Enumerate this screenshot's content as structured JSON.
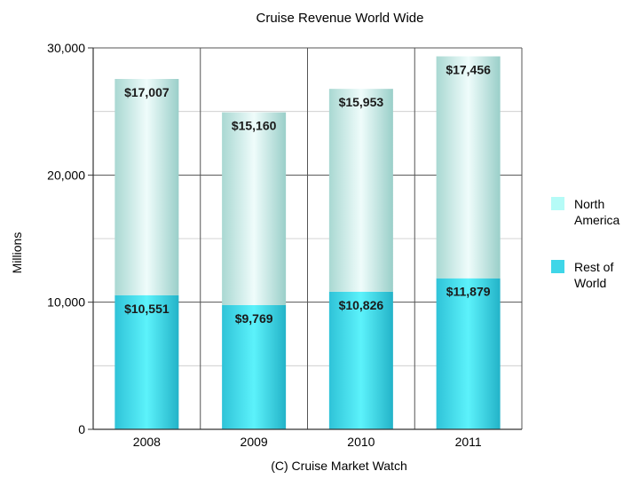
{
  "chart_data": {
    "type": "bar",
    "stacked": true,
    "title": "Cruise Revenue World Wide",
    "xlabel": "(C) Cruise Market Watch",
    "ylabel": "Millions",
    "categories": [
      "2008",
      "2009",
      "2010",
      "2011"
    ],
    "ylim": [
      0,
      30000
    ],
    "yticks": [
      "0",
      "10,000",
      "20,000",
      "30,000"
    ],
    "grid": true,
    "legend_position": "right",
    "series": [
      {
        "name": "Rest of World",
        "values": [
          10551,
          9769,
          10826,
          11879
        ],
        "labels": [
          "$10,551",
          "$9,769",
          "$10,826",
          "$11,879"
        ],
        "color": "#3fd6e8"
      },
      {
        "name": "North America",
        "values": [
          17007,
          15160,
          15953,
          17456
        ],
        "labels": [
          "$17,007",
          "$15,160",
          "$15,953",
          "$17,456"
        ],
        "color": "#bfeee8"
      }
    ],
    "legend": [
      {
        "lines": [
          "North",
          "America"
        ],
        "color": "#b5fbf7"
      },
      {
        "lines": [
          "Rest of",
          "World"
        ],
        "color": "#3fd6e8"
      }
    ]
  }
}
